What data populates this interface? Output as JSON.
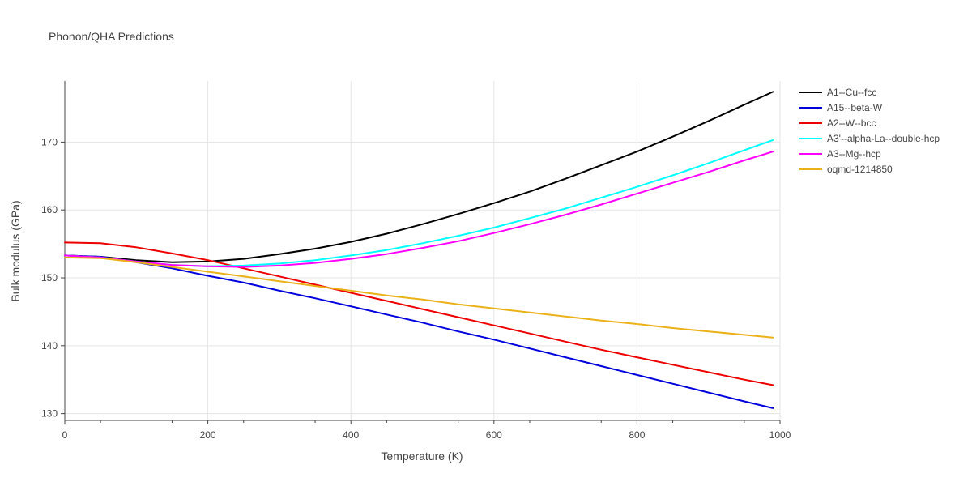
{
  "chart_data": {
    "type": "line",
    "title": "Phonon/QHA Predictions",
    "xlabel": "Temperature (K)",
    "ylabel": "Bulk modulus (GPa)",
    "xlim": [
      0,
      1000
    ],
    "ylim": [
      129,
      179
    ],
    "xticks": [
      0,
      200,
      400,
      600,
      800,
      1000
    ],
    "yticks": [
      130,
      140,
      150,
      160,
      170
    ],
    "grid": true,
    "legend_position": "right",
    "series": [
      {
        "name": "A1--Cu--fcc",
        "color": "#000000",
        "x": [
          0,
          50,
          100,
          150,
          200,
          250,
          300,
          350,
          400,
          450,
          500,
          550,
          600,
          650,
          700,
          750,
          800,
          850,
          900,
          950,
          990
        ],
        "y": [
          153.3,
          153.1,
          152.6,
          152.3,
          152.4,
          152.8,
          153.5,
          154.3,
          155.3,
          156.5,
          157.9,
          159.4,
          161.0,
          162.7,
          164.6,
          166.6,
          168.6,
          170.8,
          173.1,
          175.5,
          177.4
        ]
      },
      {
        "name": "A15--beta-W",
        "color": "#0000dd",
        "x": [
          0,
          50,
          100,
          150,
          200,
          250,
          300,
          350,
          400,
          450,
          500,
          550,
          600,
          650,
          700,
          750,
          800,
          850,
          900,
          950,
          990
        ],
        "y": [
          153.3,
          153.1,
          152.3,
          151.4,
          150.3,
          149.3,
          148.1,
          147.0,
          145.8,
          144.6,
          143.4,
          142.1,
          140.9,
          139.6,
          138.3,
          137.0,
          135.7,
          134.4,
          133.1,
          131.8,
          130.8
        ]
      },
      {
        "name": "A2--W--bcc",
        "color": "#ee0000",
        "x": [
          0,
          50,
          100,
          150,
          200,
          250,
          300,
          350,
          400,
          450,
          500,
          550,
          600,
          650,
          700,
          750,
          800,
          850,
          900,
          950,
          990
        ],
        "y": [
          155.2,
          155.1,
          154.5,
          153.6,
          152.6,
          151.4,
          150.2,
          149.0,
          147.8,
          146.6,
          145.4,
          144.2,
          143.0,
          141.8,
          140.6,
          139.4,
          138.3,
          137.2,
          136.1,
          135.0,
          134.2
        ]
      },
      {
        "name": "A3'--alpha-La--double-hcp",
        "color": "#00ffff",
        "x": [
          0,
          50,
          100,
          150,
          200,
          250,
          300,
          350,
          400,
          450,
          500,
          550,
          600,
          650,
          700,
          750,
          800,
          850,
          900,
          950,
          990
        ],
        "y": [
          153.3,
          153.0,
          152.4,
          151.9,
          151.7,
          151.8,
          152.1,
          152.6,
          153.3,
          154.1,
          155.1,
          156.2,
          157.4,
          158.8,
          160.2,
          161.8,
          163.4,
          165.1,
          166.9,
          168.8,
          170.3
        ]
      },
      {
        "name": "A3--Mg--hcp",
        "color": "#ff00ff",
        "x": [
          0,
          50,
          100,
          150,
          200,
          250,
          300,
          350,
          400,
          450,
          500,
          550,
          600,
          650,
          700,
          750,
          800,
          850,
          900,
          950,
          990
        ],
        "y": [
          153.3,
          153.0,
          152.4,
          151.9,
          151.7,
          151.6,
          151.8,
          152.2,
          152.8,
          153.5,
          154.4,
          155.4,
          156.6,
          157.9,
          159.3,
          160.8,
          162.4,
          164.0,
          165.6,
          167.3,
          168.6
        ]
      },
      {
        "name": "oqmd-1214850",
        "color": "#ebb118",
        "x": [
          0,
          50,
          100,
          150,
          200,
          250,
          300,
          350,
          400,
          450,
          500,
          550,
          600,
          650,
          700,
          750,
          800,
          850,
          900,
          950,
          990
        ],
        "y": [
          153.0,
          152.9,
          152.3,
          151.6,
          150.9,
          150.2,
          149.5,
          148.8,
          148.1,
          147.4,
          146.8,
          146.1,
          145.5,
          144.9,
          144.3,
          143.7,
          143.2,
          142.6,
          142.1,
          141.6,
          141.2
        ]
      }
    ]
  }
}
